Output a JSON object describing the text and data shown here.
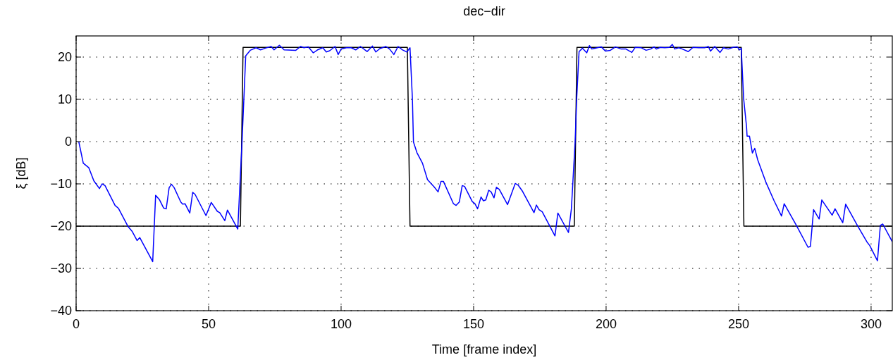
{
  "chart_data": {
    "type": "line",
    "title": "dec−dir",
    "xlabel": "Time [frame index]",
    "ylabel": "ξ [dB]",
    "xlim": [
      0,
      308
    ],
    "ylim": [
      -40,
      25
    ],
    "xticks": [
      0,
      50,
      100,
      150,
      200,
      250,
      300
    ],
    "yticks": [
      -40,
      -30,
      -20,
      -10,
      0,
      10,
      20
    ],
    "grid": true,
    "line_style": "solid",
    "marker": "none",
    "series": [
      {
        "color": "#000000",
        "x": [
          0,
          62,
          63,
          125,
          126,
          188,
          189,
          251,
          252,
          308
        ],
        "values": [
          -20,
          -20,
          22.3,
          22.3,
          -20,
          -20,
          22.3,
          22.3,
          -20,
          -20
        ]
      },
      {
        "color": "#0000ff",
        "x": [
          1,
          2.7,
          4.8,
          6.7,
          8.8,
          9.8,
          10.9,
          14.7,
          16,
          19.6,
          21.1,
          23,
          24,
          28.9,
          30,
          31.4,
          33,
          34,
          35.1,
          36,
          37,
          39.5,
          40.2,
          41.1,
          42.9,
          44,
          44.9,
          49,
          51,
          53.3,
          54.2,
          56.1,
          57.1,
          61,
          62.6,
          64,
          65.7,
          67.9,
          69.6,
          71.4,
          73.6,
          74.7,
          76.7,
          78.5,
          82.9,
          84.7,
          86,
          87.6,
          89.5,
          91.1,
          93.1,
          94.4,
          95.7,
          97.7,
          98.9,
          100,
          102,
          103.8,
          105.5,
          107.3,
          109.8,
          111.8,
          113.1,
          114.6,
          116.9,
          118.3,
          119.9,
          121.5,
          123.2,
          124.8,
          126,
          126.9,
          127.3,
          128.6,
          130.7,
          132.6,
          135.1,
          136.6,
          137.7,
          138.6,
          142.4,
          143.4,
          144.6,
          145.7,
          146.6,
          149.5,
          150.5,
          151.5,
          152.8,
          153.7,
          154.6,
          155.7,
          156.6,
          157.7,
          158.6,
          159.7,
          162.8,
          165.7,
          166.8,
          168.5,
          172.8,
          173.7,
          174.7,
          175.9,
          180.7,
          181.8,
          185.8,
          186.9,
          188.3,
          188.9,
          189.8,
          191.1,
          192.7,
          193.7,
          194.6,
          198.2,
          199.8,
          201.6,
          203.5,
          205.7,
          207.5,
          209.7,
          211,
          213.3,
          215.1,
          216.8,
          218.1,
          219,
          220.4,
          222.1,
          223.9,
          225,
          225.9,
          227.4,
          228.8,
          231,
          232.8,
          235,
          237.2,
          238.6,
          239.4,
          241,
          243,
          244.3,
          246.1,
          247.9,
          249.5,
          250.4,
          251,
          251.9,
          253,
          253.2,
          254.1,
          255.2,
          256.1,
          257.2,
          260.3,
          263.4,
          266.2,
          267.2,
          271.8,
          276.2,
          277.1,
          278.3,
          280.4,
          281.4,
          285.3,
          286.4,
          289.3,
          290.4,
          294.8,
          298.4,
          299.5,
          302.4,
          303.5,
          304.4,
          308
        ],
        "values": [
          0,
          -5.1,
          -6.2,
          -9.3,
          -11.1,
          -10,
          -10.4,
          -15.1,
          -15.8,
          -20.1,
          -21.2,
          -23.4,
          -22.7,
          -28.4,
          -12.7,
          -13.7,
          -15.7,
          -15.9,
          -10.9,
          -10.1,
          -10.9,
          -14.3,
          -14.8,
          -14.7,
          -16.9,
          -12,
          -12.5,
          -17.5,
          -14.4,
          -16.5,
          -16.8,
          -18.7,
          -16.2,
          -20.7,
          -0.2,
          20.3,
          21.6,
          22.2,
          21.7,
          22.1,
          22.5,
          21.7,
          22.8,
          21.7,
          21.6,
          22.5,
          22.2,
          22.4,
          21,
          21.7,
          22.2,
          21.2,
          21.5,
          22.5,
          20.6,
          21.9,
          22.2,
          22.2,
          21.7,
          22.5,
          21.3,
          22.6,
          21.2,
          22,
          22.5,
          21.9,
          20.6,
          22.5,
          21.7,
          21.2,
          22.2,
          10.2,
          -0.1,
          -2.6,
          -5.1,
          -9,
          -10.7,
          -11.9,
          -9.4,
          -9.4,
          -14.7,
          -15.1,
          -14.3,
          -10.4,
          -10.6,
          -14.2,
          -14.7,
          -15.9,
          -13.1,
          -14,
          -13.8,
          -11.5,
          -11.9,
          -13.3,
          -10.8,
          -11.3,
          -14.9,
          -9.9,
          -10.3,
          -11.8,
          -16.8,
          -15,
          -16.1,
          -16.6,
          -22.3,
          -16.9,
          -21.5,
          -15.9,
          -0.2,
          10.2,
          21.3,
          22.1,
          21,
          22.7,
          21.9,
          22.4,
          21.4,
          21.6,
          22.4,
          21.9,
          21.9,
          21.1,
          22.3,
          22.2,
          21.6,
          21.9,
          22.4,
          21.9,
          22.3,
          22.2,
          22.3,
          23,
          21.9,
          22.2,
          21.9,
          21.3,
          22.3,
          22.2,
          22.2,
          22.5,
          21.4,
          22.5,
          21.1,
          22.2,
          21.9,
          22.3,
          22.4,
          21.7,
          22.1,
          10.2,
          3.5,
          1.3,
          1.3,
          -2.7,
          -1.6,
          -4.3,
          -9.6,
          -14,
          -17.6,
          -14.7,
          -19.8,
          -25,
          -24.8,
          -16.1,
          -18.3,
          -13.8,
          -17.4,
          -15.9,
          -19.2,
          -14.8,
          -19.8,
          -23.7,
          -24.6,
          -28.2,
          -19.8,
          -19.5,
          -23.7
        ]
      }
    ]
  }
}
